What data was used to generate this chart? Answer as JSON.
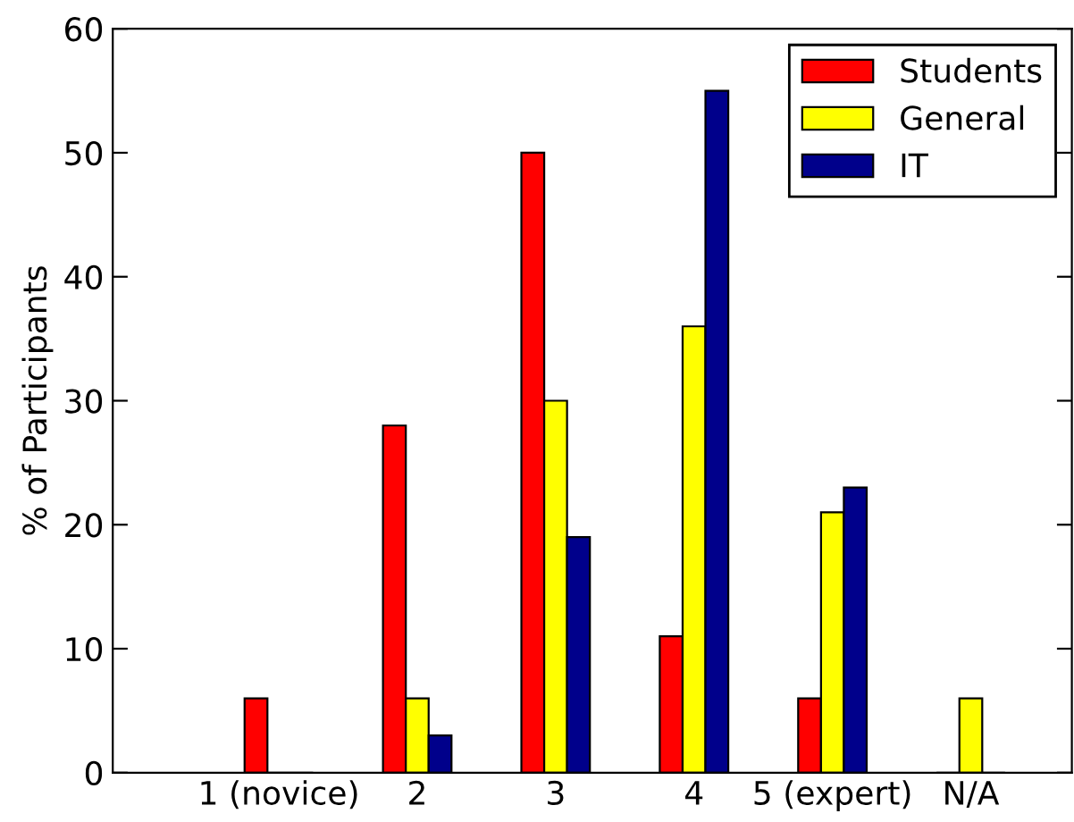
{
  "chart_data": {
    "type": "bar",
    "ylabel": "% of Participants",
    "categories": [
      "1 (novice)",
      "2",
      "3",
      "4",
      "5 (expert)",
      "N/A"
    ],
    "series": [
      {
        "name": "Students",
        "color": "#ff0000",
        "values": [
          6,
          28,
          50,
          11,
          6,
          0
        ]
      },
      {
        "name": "General",
        "color": "#ffff00",
        "values": [
          0,
          6,
          30,
          36,
          21,
          6
        ]
      },
      {
        "name": "IT",
        "color": "#00008b",
        "values": [
          0,
          3,
          19,
          55,
          23,
          0
        ]
      }
    ],
    "ylim": [
      0,
      60
    ],
    "yticks": [
      0,
      10,
      20,
      30,
      40,
      50,
      60
    ],
    "grid": false,
    "legend": "top right"
  }
}
